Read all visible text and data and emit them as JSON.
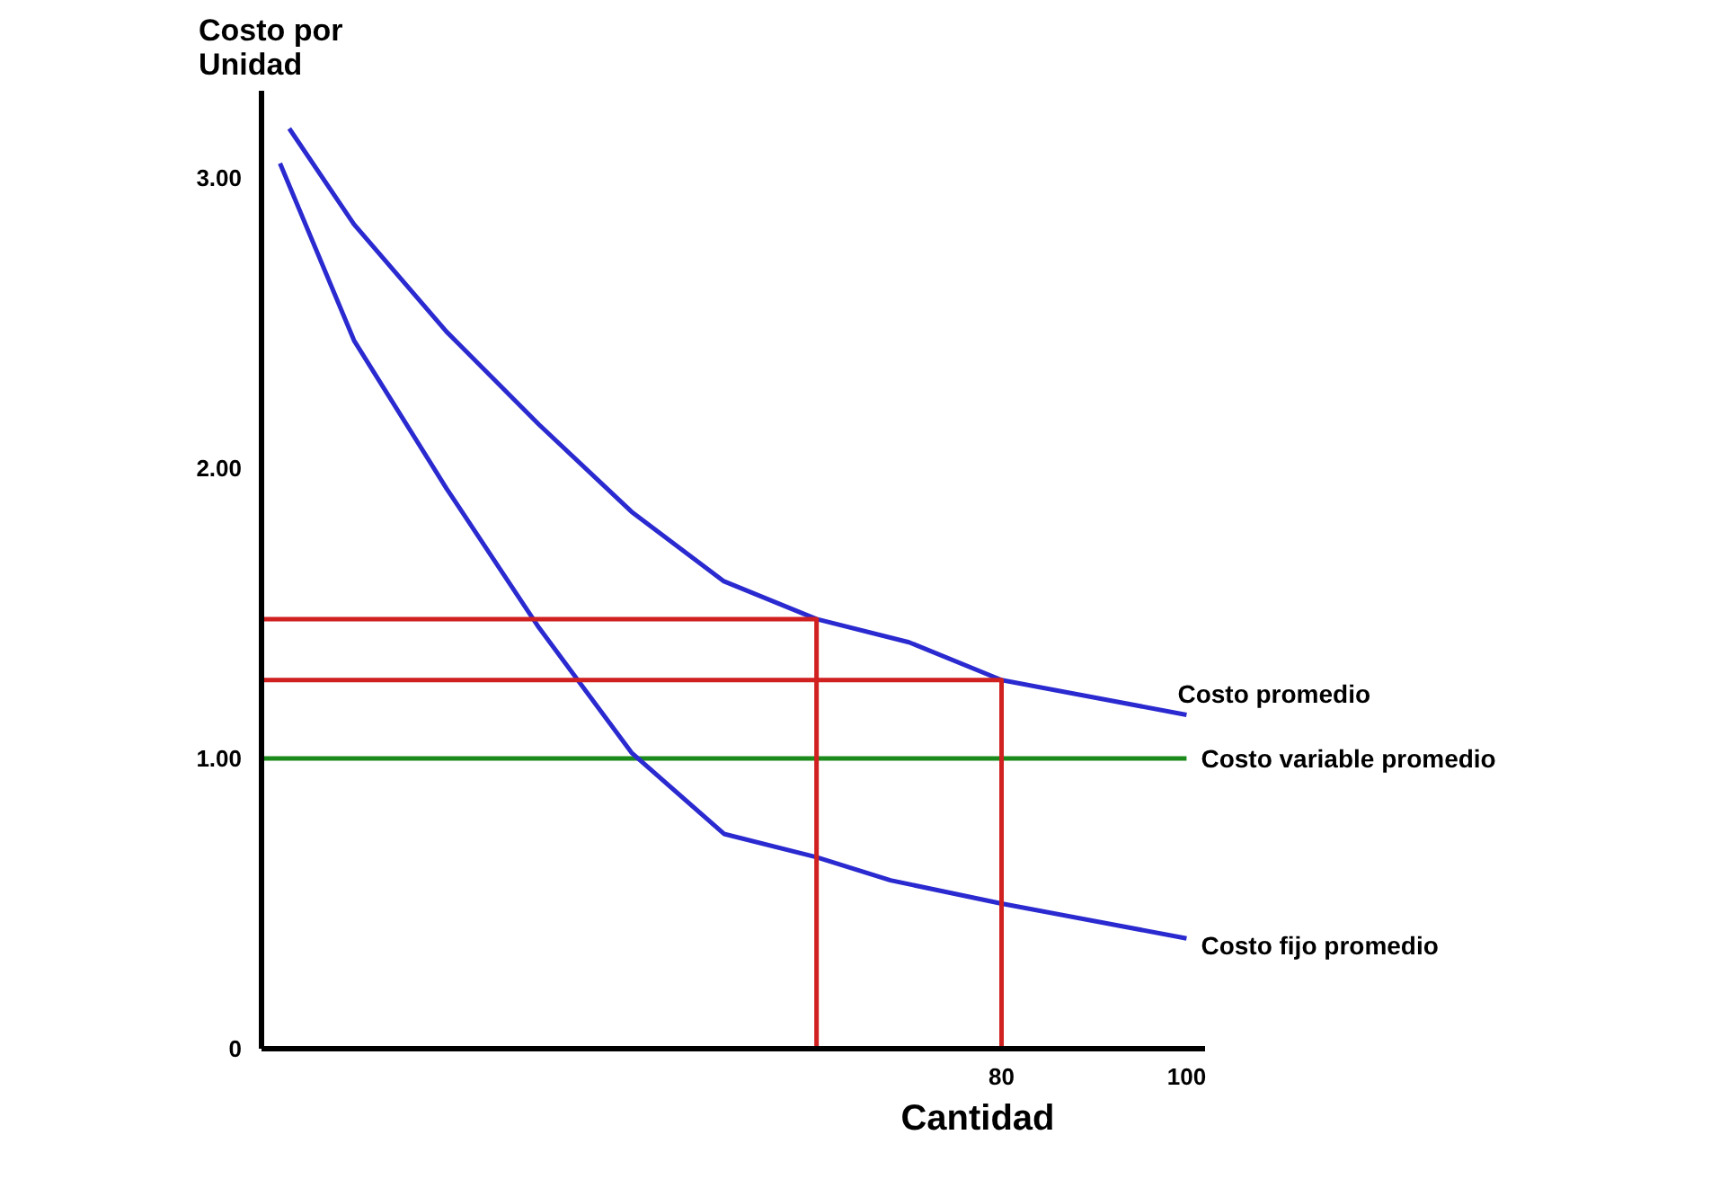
{
  "chart_data": {
    "type": "line",
    "ylabel": "Costo por\nUnidad",
    "xlabel": "Cantidad",
    "xlim": [
      0,
      102
    ],
    "ylim": [
      0,
      3.3
    ],
    "xticks": [
      80,
      100
    ],
    "yticks": [
      0,
      {
        "value": 1,
        "label": "1.00"
      },
      {
        "value": 2,
        "label": "2.00"
      },
      {
        "value": 3,
        "label": "3.00"
      }
    ],
    "grid": false,
    "legend": false,
    "series": [
      {
        "name": "Costo promedio",
        "color": "#2a2ad0",
        "x": [
          3,
          10,
          20,
          30,
          40,
          50,
          60,
          70,
          80,
          100
        ],
        "values": [
          3.17,
          2.84,
          2.47,
          2.15,
          1.85,
          1.61,
          1.48,
          1.4,
          1.27,
          1.15
        ]
      },
      {
        "name": "Costo variable promedio",
        "color": "#1a8a1a",
        "x": [
          0,
          100
        ],
        "values": [
          1,
          1
        ]
      },
      {
        "name": "Costo fijo promedio",
        "color": "#2a2ad0",
        "x": [
          2,
          10,
          20,
          30,
          40,
          50,
          60,
          68,
          80,
          100
        ],
        "values": [
          3.05,
          2.44,
          1.93,
          1.45,
          1.02,
          0.74,
          0.66,
          0.58,
          0.5,
          0.38
        ]
      },
      {
        "color": "#d02020",
        "x": [
          0,
          60,
          60
        ],
        "values": [
          1.48,
          1.48,
          0
        ]
      },
      {
        "color": "#d02020",
        "x": [
          0,
          80,
          80
        ],
        "values": [
          1.27,
          1.27,
          0
        ]
      }
    ]
  }
}
